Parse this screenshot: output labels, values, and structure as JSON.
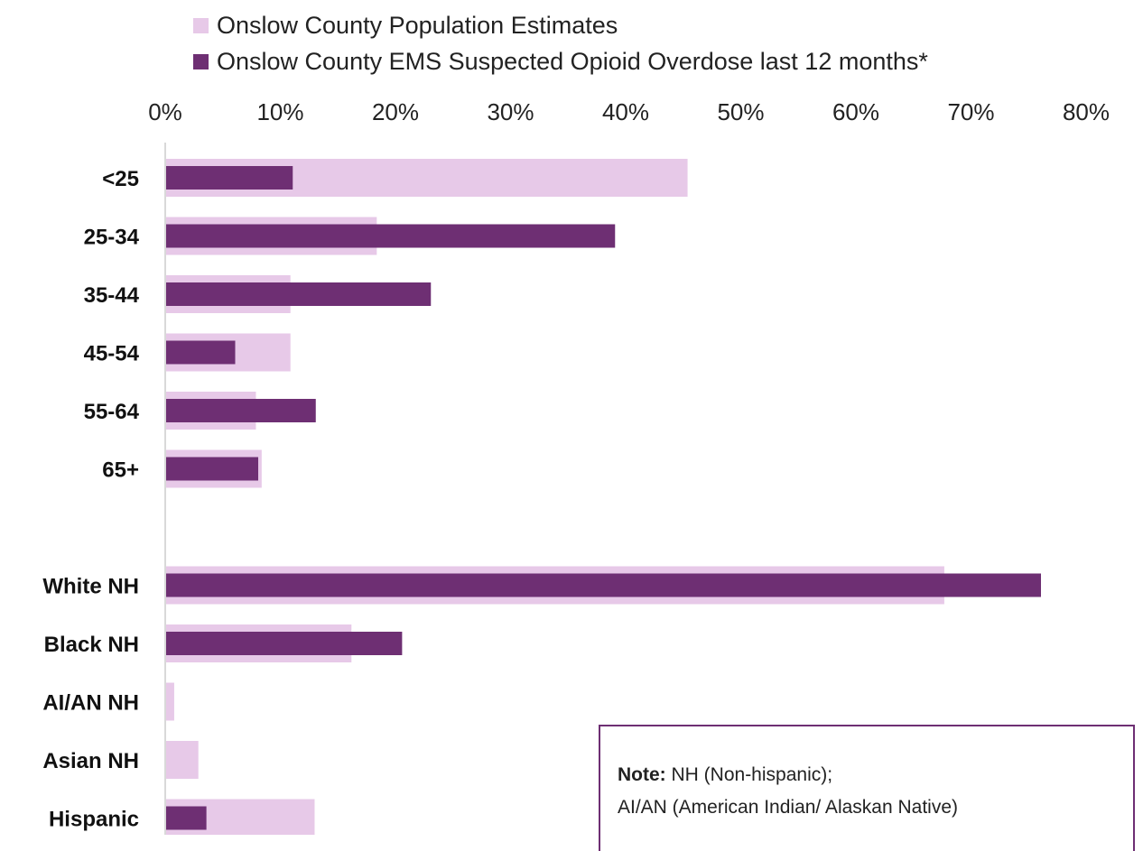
{
  "chart_data": {
    "type": "bar",
    "orientation": "horizontal",
    "categories": [
      "<25",
      "25-34",
      "35-44",
      "45-54",
      "55-64",
      "65+",
      "",
      "White NH",
      "Black NH",
      "AI/AN NH",
      "Asian NH",
      "Hispanic"
    ],
    "series": [
      {
        "name": "Onslow County Population Estimates",
        "color": "#e7c9e8",
        "values": [
          45.3,
          18.3,
          10.8,
          10.8,
          7.8,
          8.3,
          null,
          67.6,
          16.1,
          0.7,
          2.8,
          12.9
        ]
      },
      {
        "name": "Onslow County EMS Suspected Opioid Overdose last 12 months*",
        "color": "#6e2f73",
        "values": [
          11.0,
          39.0,
          23.0,
          6.0,
          13.0,
          8.0,
          null,
          76.0,
          20.5,
          0,
          0,
          3.5
        ]
      }
    ],
    "x_ticks": [
      "0%",
      "10%",
      "20%",
      "30%",
      "40%",
      "50%",
      "60%",
      "70%",
      "80%"
    ],
    "xlim": [
      0,
      80
    ],
    "axis_position": "top",
    "legend_position": "top",
    "grid": false
  },
  "note": {
    "bold": "Note:",
    "line1": " NH (Non-hispanic);",
    "line2": "AI/AN (American Indian/ Alaskan Native)"
  }
}
